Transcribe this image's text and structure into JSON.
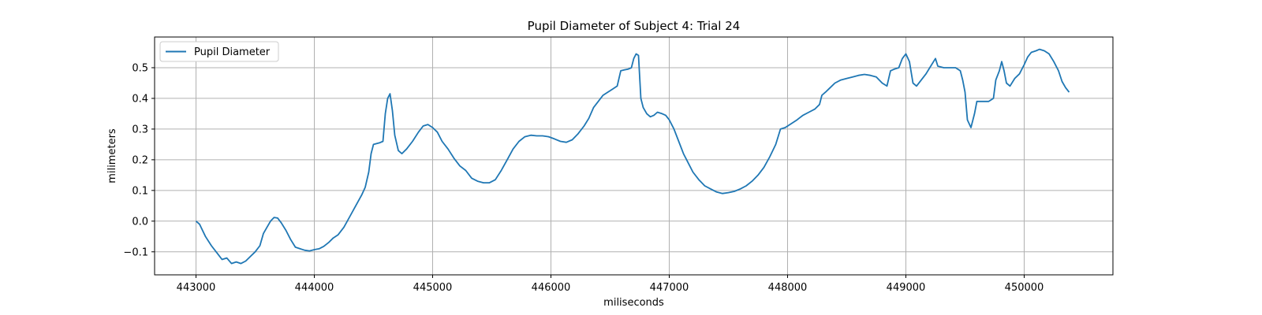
{
  "chart_data": {
    "type": "line",
    "title": "Pupil Diameter of Subject 4: Trial 24",
    "xlabel": "miliseconds",
    "ylabel": "milimeters",
    "xlim": [
      442650,
      450750
    ],
    "ylim": [
      -0.175,
      0.6
    ],
    "xticks": [
      443000,
      444000,
      445000,
      446000,
      447000,
      448000,
      449000,
      450000
    ],
    "yticks": [
      -0.1,
      0.0,
      0.1,
      0.2,
      0.3,
      0.4,
      0.5
    ],
    "xtick_labels": [
      "443000",
      "444000",
      "445000",
      "446000",
      "447000",
      "448000",
      "449000",
      "450000"
    ],
    "ytick_labels": [
      "−0.1",
      "0.0",
      "0.1",
      "0.2",
      "0.3",
      "0.4",
      "0.5"
    ],
    "grid": true,
    "legend": "upper-left",
    "series": [
      {
        "name": "Pupil Diameter",
        "color": "#1f77b4",
        "points": [
          [
            443000,
            0.0
          ],
          [
            443030,
            -0.01
          ],
          [
            443080,
            -0.05
          ],
          [
            443130,
            -0.08
          ],
          [
            443180,
            -0.105
          ],
          [
            443220,
            -0.125
          ],
          [
            443260,
            -0.12
          ],
          [
            443300,
            -0.138
          ],
          [
            443340,
            -0.133
          ],
          [
            443380,
            -0.138
          ],
          [
            443420,
            -0.13
          ],
          [
            443460,
            -0.115
          ],
          [
            443500,
            -0.1
          ],
          [
            443540,
            -0.08
          ],
          [
            443570,
            -0.04
          ],
          [
            443600,
            -0.02
          ],
          [
            443630,
            0.0
          ],
          [
            443660,
            0.012
          ],
          [
            443690,
            0.01
          ],
          [
            443720,
            -0.005
          ],
          [
            443760,
            -0.03
          ],
          [
            443800,
            -0.06
          ],
          [
            443840,
            -0.085
          ],
          [
            443880,
            -0.09
          ],
          [
            443920,
            -0.095
          ],
          [
            443960,
            -0.097
          ],
          [
            444000,
            -0.093
          ],
          [
            444040,
            -0.09
          ],
          [
            444080,
            -0.082
          ],
          [
            444120,
            -0.07
          ],
          [
            444160,
            -0.055
          ],
          [
            444200,
            -0.045
          ],
          [
            444250,
            -0.02
          ],
          [
            444300,
            0.015
          ],
          [
            444350,
            0.05
          ],
          [
            444400,
            0.085
          ],
          [
            444430,
            0.11
          ],
          [
            444460,
            0.16
          ],
          [
            444480,
            0.22
          ],
          [
            444500,
            0.25
          ],
          [
            444550,
            0.255
          ],
          [
            444580,
            0.26
          ],
          [
            444600,
            0.35
          ],
          [
            444620,
            0.4
          ],
          [
            444640,
            0.415
          ],
          [
            444660,
            0.36
          ],
          [
            444680,
            0.28
          ],
          [
            444710,
            0.23
          ],
          [
            444740,
            0.22
          ],
          [
            444780,
            0.235
          ],
          [
            444830,
            0.26
          ],
          [
            444880,
            0.29
          ],
          [
            444920,
            0.31
          ],
          [
            444960,
            0.315
          ],
          [
            445000,
            0.305
          ],
          [
            445040,
            0.29
          ],
          [
            445080,
            0.26
          ],
          [
            445130,
            0.235
          ],
          [
            445180,
            0.205
          ],
          [
            445230,
            0.18
          ],
          [
            445280,
            0.165
          ],
          [
            445330,
            0.14
          ],
          [
            445380,
            0.13
          ],
          [
            445430,
            0.125
          ],
          [
            445480,
            0.125
          ],
          [
            445530,
            0.135
          ],
          [
            445580,
            0.165
          ],
          [
            445630,
            0.2
          ],
          [
            445680,
            0.235
          ],
          [
            445730,
            0.26
          ],
          [
            445780,
            0.275
          ],
          [
            445830,
            0.28
          ],
          [
            445880,
            0.278
          ],
          [
            445930,
            0.278
          ],
          [
            445980,
            0.275
          ],
          [
            446030,
            0.268
          ],
          [
            446080,
            0.26
          ],
          [
            446130,
            0.257
          ],
          [
            446180,
            0.265
          ],
          [
            446230,
            0.285
          ],
          [
            446280,
            0.31
          ],
          [
            446320,
            0.335
          ],
          [
            446360,
            0.37
          ],
          [
            446400,
            0.39
          ],
          [
            446440,
            0.41
          ],
          [
            446480,
            0.42
          ],
          [
            446520,
            0.43
          ],
          [
            446560,
            0.44
          ],
          [
            446590,
            0.49
          ],
          [
            446620,
            0.493
          ],
          [
            446650,
            0.495
          ],
          [
            446680,
            0.5
          ],
          [
            446700,
            0.53
          ],
          [
            446720,
            0.545
          ],
          [
            446740,
            0.54
          ],
          [
            446760,
            0.4
          ],
          [
            446780,
            0.37
          ],
          [
            446810,
            0.35
          ],
          [
            446840,
            0.34
          ],
          [
            446870,
            0.345
          ],
          [
            446900,
            0.355
          ],
          [
            446940,
            0.35
          ],
          [
            446970,
            0.345
          ],
          [
            447000,
            0.33
          ],
          [
            447040,
            0.3
          ],
          [
            447080,
            0.26
          ],
          [
            447120,
            0.22
          ],
          [
            447160,
            0.19
          ],
          [
            447200,
            0.16
          ],
          [
            447250,
            0.135
          ],
          [
            447300,
            0.115
          ],
          [
            447350,
            0.105
          ],
          [
            447400,
            0.095
          ],
          [
            447450,
            0.09
          ],
          [
            447500,
            0.093
          ],
          [
            447550,
            0.097
          ],
          [
            447600,
            0.105
          ],
          [
            447650,
            0.115
          ],
          [
            447700,
            0.13
          ],
          [
            447750,
            0.15
          ],
          [
            447800,
            0.175
          ],
          [
            447850,
            0.21
          ],
          [
            447900,
            0.25
          ],
          [
            447940,
            0.3
          ],
          [
            447980,
            0.305
          ],
          [
            448020,
            0.315
          ],
          [
            448080,
            0.33
          ],
          [
            448130,
            0.345
          ],
          [
            448180,
            0.355
          ],
          [
            448230,
            0.365
          ],
          [
            448270,
            0.38
          ],
          [
            448290,
            0.41
          ],
          [
            448320,
            0.42
          ],
          [
            448360,
            0.435
          ],
          [
            448400,
            0.45
          ],
          [
            448450,
            0.46
          ],
          [
            448500,
            0.465
          ],
          [
            448550,
            0.47
          ],
          [
            448600,
            0.475
          ],
          [
            448650,
            0.478
          ],
          [
            448700,
            0.475
          ],
          [
            448750,
            0.47
          ],
          [
            448800,
            0.45
          ],
          [
            448840,
            0.44
          ],
          [
            448870,
            0.49
          ],
          [
            448900,
            0.495
          ],
          [
            448940,
            0.5
          ],
          [
            448970,
            0.53
          ],
          [
            449000,
            0.545
          ],
          [
            449030,
            0.52
          ],
          [
            449060,
            0.45
          ],
          [
            449090,
            0.44
          ],
          [
            449130,
            0.46
          ],
          [
            449170,
            0.48
          ],
          [
            449210,
            0.505
          ],
          [
            449250,
            0.53
          ],
          [
            449270,
            0.505
          ],
          [
            449320,
            0.5
          ],
          [
            449370,
            0.5
          ],
          [
            449420,
            0.5
          ],
          [
            449460,
            0.49
          ],
          [
            449480,
            0.46
          ],
          [
            449500,
            0.42
          ],
          [
            449520,
            0.33
          ],
          [
            449550,
            0.305
          ],
          [
            449580,
            0.35
          ],
          [
            449600,
            0.39
          ],
          [
            449650,
            0.39
          ],
          [
            449700,
            0.39
          ],
          [
            449740,
            0.4
          ],
          [
            449760,
            0.46
          ],
          [
            449790,
            0.49
          ],
          [
            449810,
            0.52
          ],
          [
            449830,
            0.49
          ],
          [
            449850,
            0.45
          ],
          [
            449880,
            0.44
          ],
          [
            449920,
            0.465
          ],
          [
            449960,
            0.48
          ],
          [
            450000,
            0.51
          ],
          [
            450030,
            0.535
          ],
          [
            450060,
            0.55
          ],
          [
            450100,
            0.555
          ],
          [
            450130,
            0.56
          ],
          [
            450170,
            0.555
          ],
          [
            450210,
            0.545
          ],
          [
            450250,
            0.52
          ],
          [
            450290,
            0.49
          ],
          [
            450320,
            0.455
          ],
          [
            450350,
            0.435
          ],
          [
            450380,
            0.42
          ]
        ]
      }
    ]
  }
}
